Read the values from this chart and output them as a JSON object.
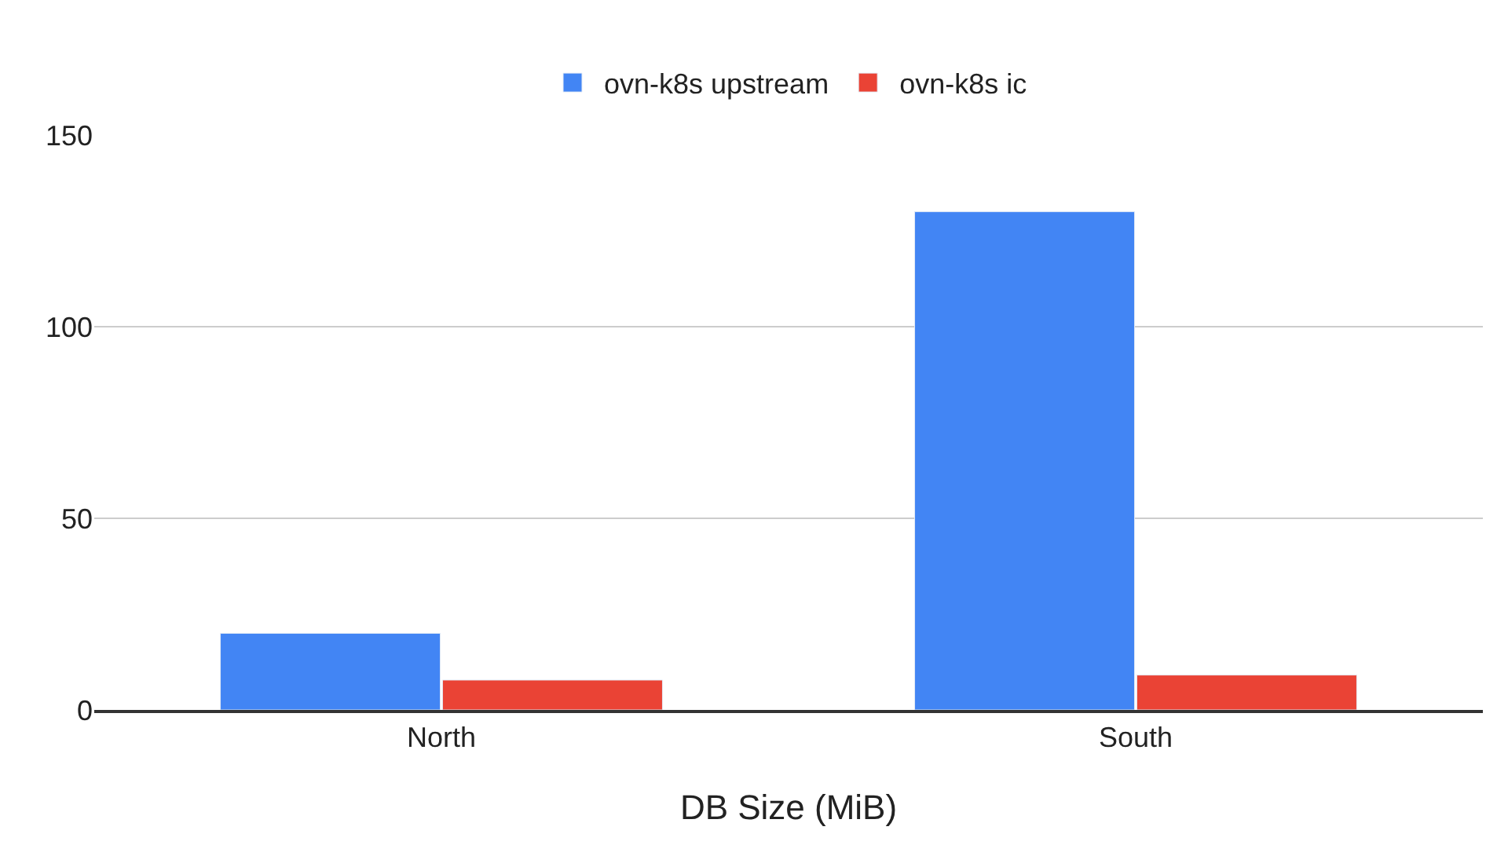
{
  "chart_data": {
    "type": "bar",
    "xlabel": "DB Size (MiB)",
    "categories": [
      "North",
      "South"
    ],
    "series": [
      {
        "name": "ovn-k8s upstream",
        "color": "#4285f4",
        "values": [
          20,
          130
        ]
      },
      {
        "name": "ovn-k8s ic",
        "color": "#ea4335",
        "values": [
          7.8,
          9.1
        ]
      }
    ],
    "ylim": [
      0,
      150
    ],
    "yticks": [
      0,
      50,
      100,
      150
    ],
    "grid": "y",
    "legend": "top"
  }
}
